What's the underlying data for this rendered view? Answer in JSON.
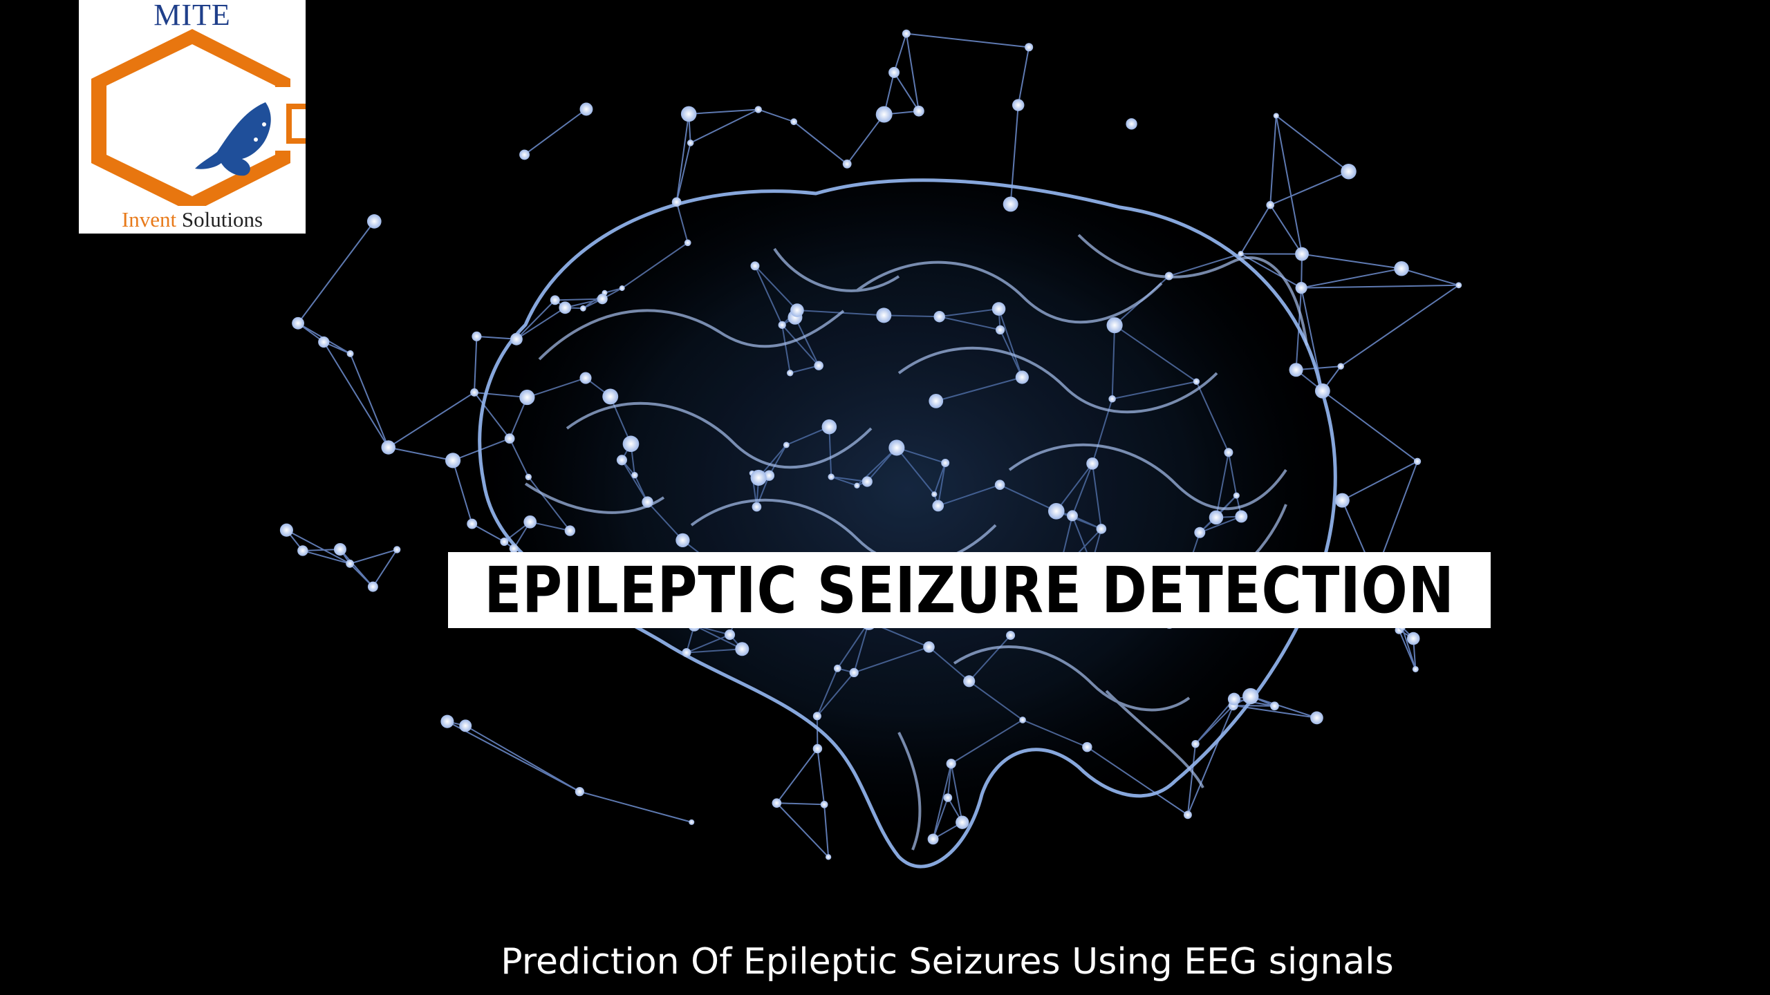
{
  "slide": {
    "background_color": "#000000",
    "art_color": "#7d9fd8",
    "art_icon": "brain-network-illustration",
    "title": "EPILEPTIC SEIZURE DETECTION",
    "subtitle": "Prediction Of Epileptic Seizures Using EEG signals"
  },
  "logo": {
    "top_text": "MITE",
    "bottom_text_1": "Invent",
    "bottom_text_2": " Solutions",
    "hexagon_color": "#e8760f",
    "butterfly_color": "#1f4f9a",
    "icon": "butterfly-icon"
  }
}
